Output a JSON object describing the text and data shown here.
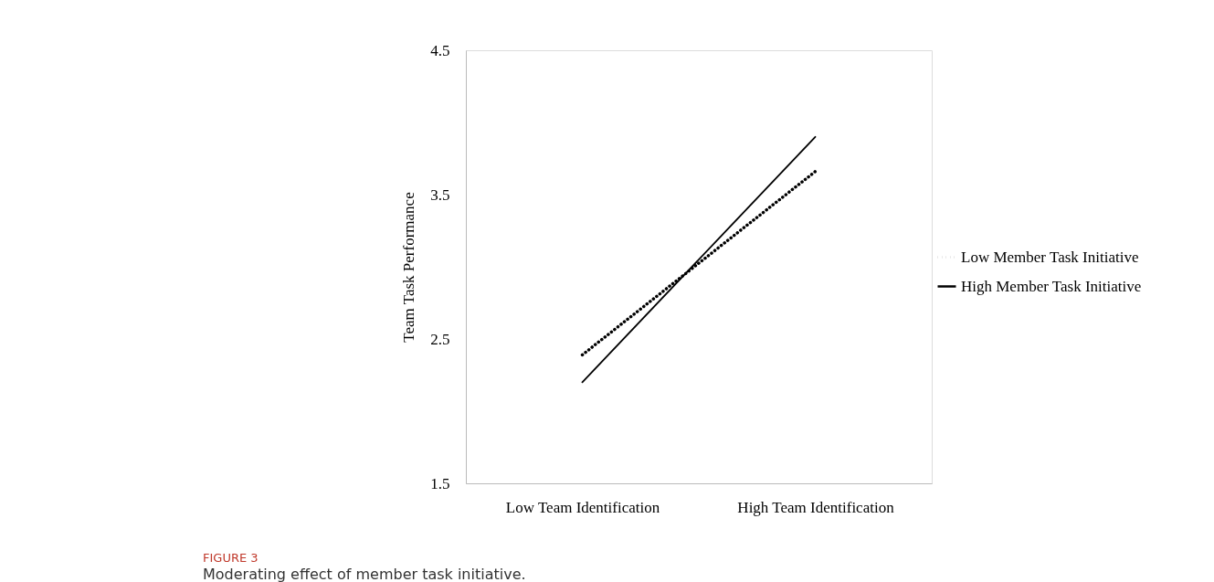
{
  "chart_data": {
    "type": "line",
    "ylabel": "Team Task Performance",
    "categories": [
      "Low Team Identification",
      "High Team Identification"
    ],
    "series": [
      {
        "name": "Low  Member Task Initiative",
        "color": "#000000",
        "values": [
          2.39,
          3.66
        ],
        "line_style": "dotted"
      },
      {
        "name": "High  Member Task Initiative",
        "color": "#000000",
        "values": [
          2.2,
          3.9
        ],
        "line_style": "solid"
      }
    ],
    "ylim": [
      1.5,
      4.5
    ],
    "yticks": [
      1.5,
      2.5,
      3.5,
      4.5
    ],
    "grid": false,
    "legend": "right",
    "marker": "none",
    "annotations": [
      "FIGURE 3",
      "Moderating effect of member task initiative."
    ]
  }
}
